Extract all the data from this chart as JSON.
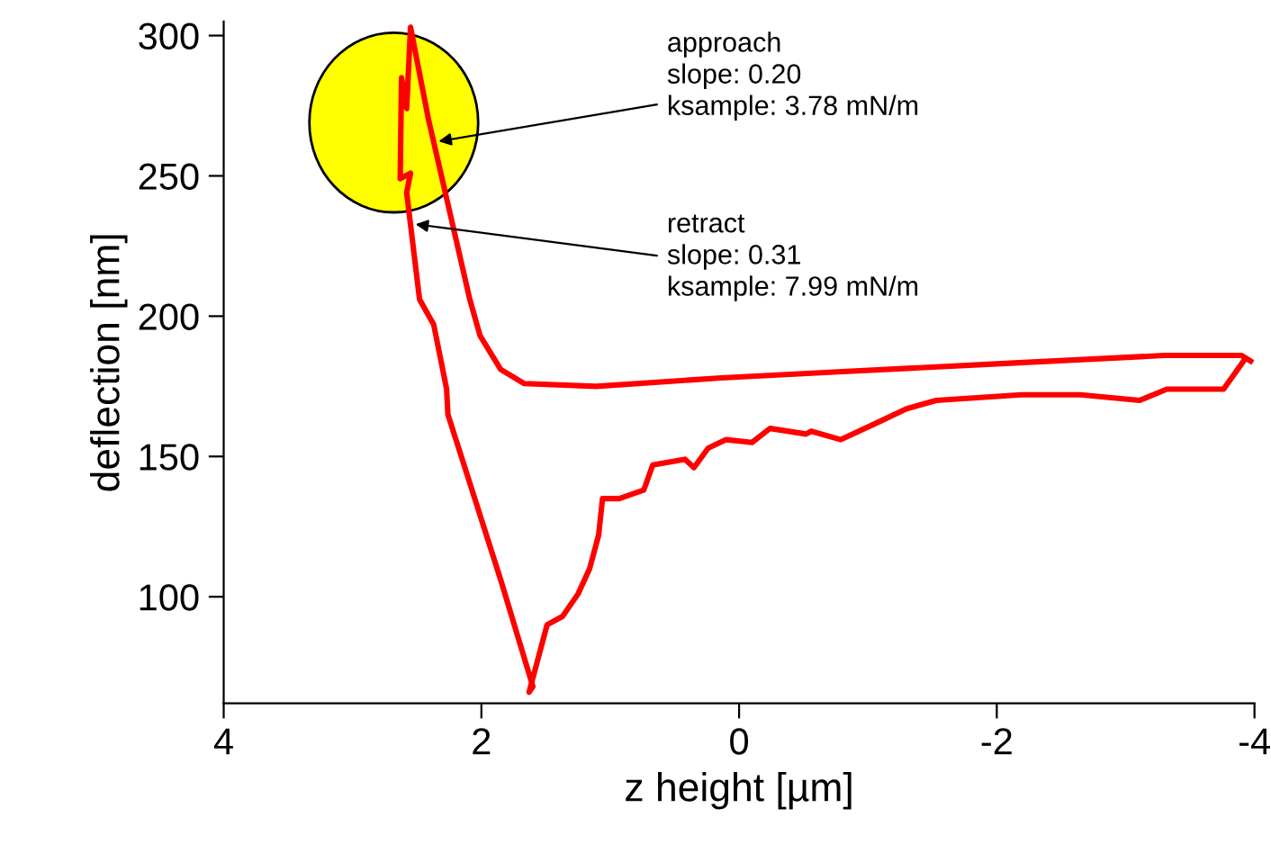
{
  "chart_data": {
    "type": "line",
    "xlabel": "z height [µm]",
    "ylabel": "deflection [nm]",
    "xlim": [
      4,
      -4
    ],
    "xticks": [
      4,
      2,
      0,
      -2,
      -4
    ],
    "ylim": [
      62,
      305
    ],
    "yticks": [
      100,
      150,
      200,
      250,
      300
    ],
    "grid": false,
    "legend": false,
    "marker": "none",
    "line_style": "solid",
    "series": [
      {
        "color": "#ff0000",
        "x": [
          -3.97,
          -3.9,
          -3.3,
          -2.0,
          -0.7,
          0.14,
          1.11,
          1.67,
          1.85,
          2.01,
          2.09,
          2.27,
          2.41,
          2.55,
          2.58,
          2.62,
          2.63,
          2.55,
          2.58,
          2.48,
          2.37,
          2.27,
          2.26,
          1.85,
          1.6,
          1.63,
          1.49,
          1.37,
          1.25,
          1.16,
          1.09,
          1.06,
          0.93,
          0.74,
          0.67,
          0.42,
          0.35,
          0.24,
          0.1,
          -0.1,
          -0.24,
          -0.52,
          -0.56,
          -0.79,
          -1.07,
          -1.3,
          -1.53,
          -2.19,
          -2.65,
          -3.11,
          -3.32,
          -3.76,
          -3.9,
          -3.93
        ],
        "values": [
          184,
          186,
          186,
          183,
          180,
          178,
          175,
          176,
          181,
          193,
          206,
          242,
          270,
          303,
          274,
          285,
          249,
          251,
          244,
          206,
          197,
          174,
          165,
          106,
          68,
          66,
          90,
          93,
          101,
          110,
          122,
          135,
          135,
          138,
          147,
          149,
          146,
          153,
          156,
          155,
          160,
          158,
          159,
          156,
          162,
          167,
          170,
          172,
          172,
          170,
          174,
          174,
          183,
          185
        ]
      }
    ],
    "annotations": [
      {
        "text": "approach\nslope: 0.20\nksample: 3.78 mN/m",
        "x": 2.37,
        "y": 262
      },
      {
        "text": "retract\nslope: 0.31\nksample: 7.99 mN/m",
        "x": 2.55,
        "y": 233
      }
    ]
  }
}
